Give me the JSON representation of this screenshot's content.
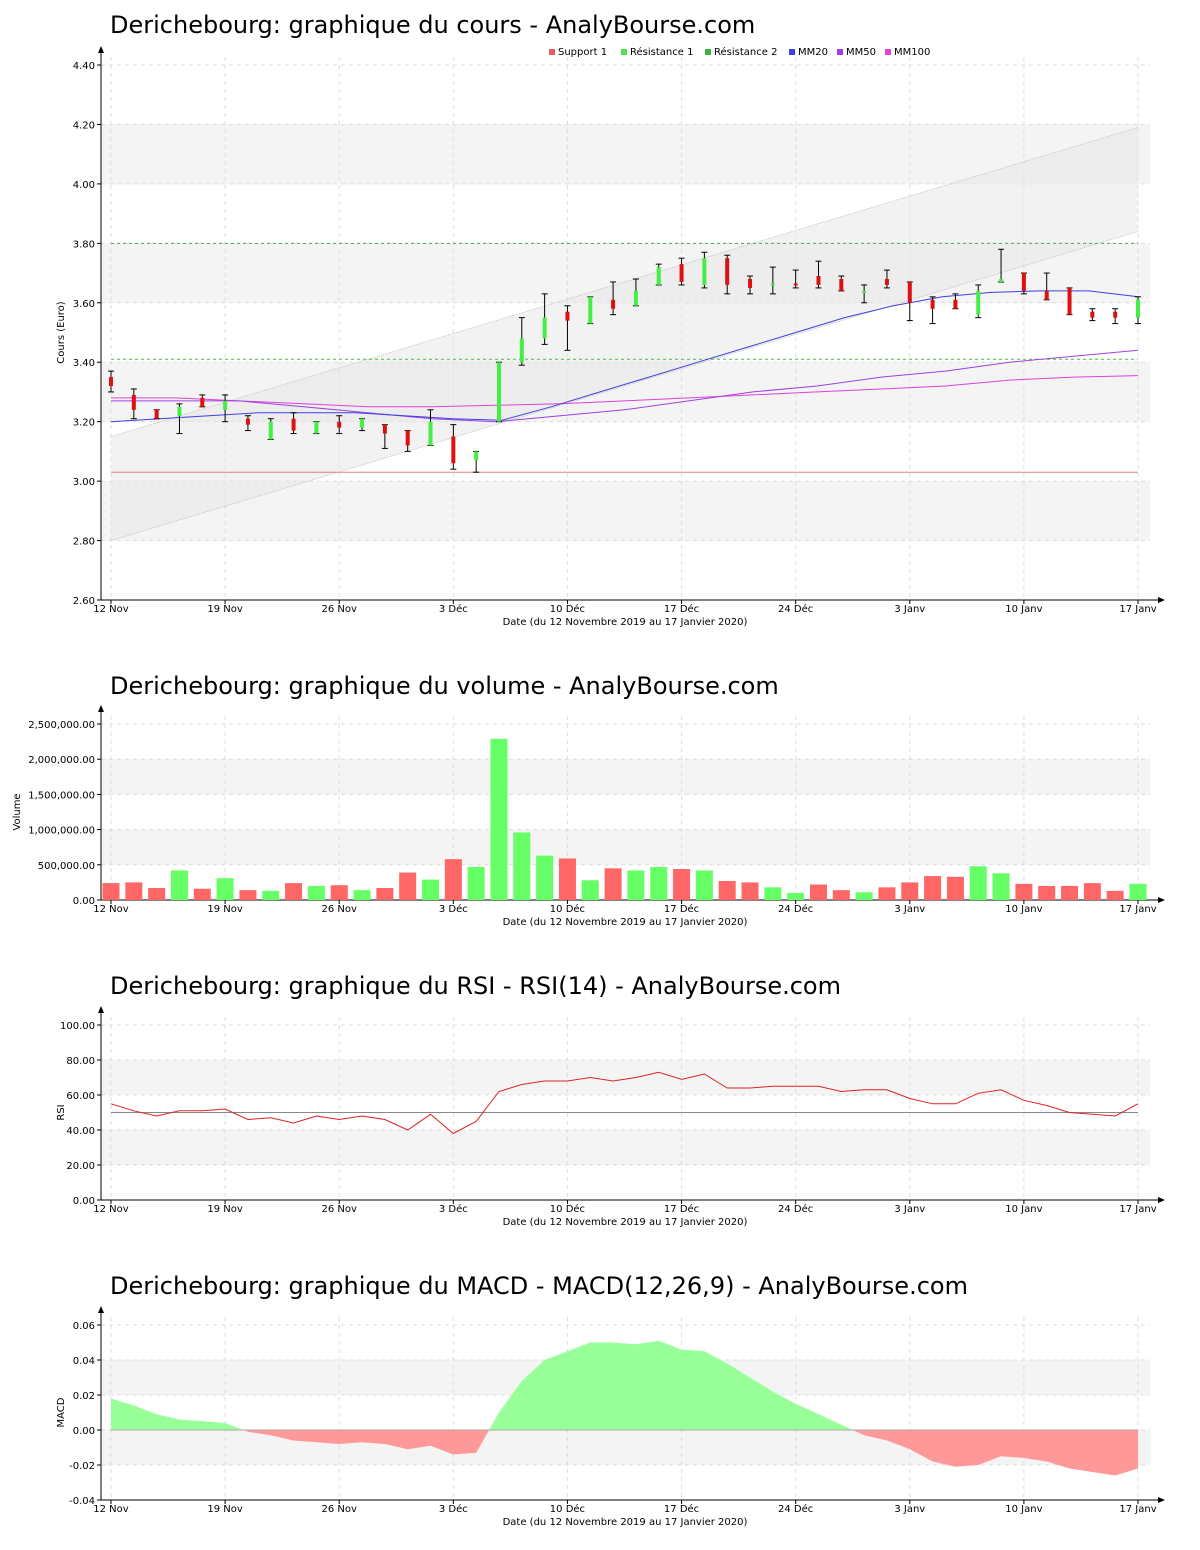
{
  "chart_data": [
    {
      "type": "candlestick",
      "title": "Derichebourg: graphique du cours - AnalyBourse.com",
      "xlabel": "Date (du 12 Novembre 2019 au 17 Janvier 2020)",
      "ylabel": "Cours (Euro)",
      "ylim": [
        2.6,
        4.4
      ],
      "yticks": [
        "2.60",
        "2.80",
        "3.00",
        "3.20",
        "3.40",
        "3.60",
        "3.80",
        "4.00",
        "4.20",
        "4.40"
      ],
      "xticks": [
        "12 Nov",
        "19 Nov",
        "26 Nov",
        "3 Déc",
        "10 Déc",
        "17 Déc",
        "24 Déc",
        "3 Janv",
        "10 Janv",
        "17 Janv"
      ],
      "legend": [
        {
          "name": "Support 1",
          "color": "#e06060"
        },
        {
          "name": "Résistance 1",
          "color": "#55e055"
        },
        {
          "name": "Résistance 2",
          "color": "#40b040"
        },
        {
          "name": "MM20",
          "color": "#4040e0"
        },
        {
          "name": "MM50",
          "color": "#a040e0"
        },
        {
          "name": "MM100",
          "color": "#e040e0"
        }
      ],
      "support1": 3.03,
      "resistance1": 3.41,
      "resistance2": 3.8,
      "candles": [
        {
          "o": 3.35,
          "h": 3.37,
          "l": 3.3,
          "c": 3.32
        },
        {
          "o": 3.29,
          "h": 3.31,
          "l": 3.21,
          "c": 3.24
        },
        {
          "o": 3.24,
          "h": 3.24,
          "l": 3.21,
          "c": 3.21
        },
        {
          "o": 3.22,
          "h": 3.26,
          "l": 3.16,
          "c": 3.25
        },
        {
          "o": 3.28,
          "h": 3.29,
          "l": 3.25,
          "c": 3.25
        },
        {
          "o": 3.24,
          "h": 3.29,
          "l": 3.2,
          "c": 3.27
        },
        {
          "o": 3.21,
          "h": 3.22,
          "l": 3.17,
          "c": 3.19
        },
        {
          "o": 3.14,
          "h": 3.21,
          "l": 3.14,
          "c": 3.2
        },
        {
          "o": 3.21,
          "h": 3.23,
          "l": 3.16,
          "c": 3.17
        },
        {
          "o": 3.16,
          "h": 3.2,
          "l": 3.16,
          "c": 3.2
        },
        {
          "o": 3.2,
          "h": 3.22,
          "l": 3.16,
          "c": 3.18
        },
        {
          "o": 3.18,
          "h": 3.21,
          "l": 3.17,
          "c": 3.21
        },
        {
          "o": 3.19,
          "h": 3.19,
          "l": 3.11,
          "c": 3.16
        },
        {
          "o": 3.17,
          "h": 3.17,
          "l": 3.1,
          "c": 3.12
        },
        {
          "o": 3.12,
          "h": 3.24,
          "l": 3.12,
          "c": 3.2
        },
        {
          "o": 3.15,
          "h": 3.19,
          "l": 3.04,
          "c": 3.06
        },
        {
          "o": 3.07,
          "h": 3.1,
          "l": 3.03,
          "c": 3.1
        },
        {
          "o": 3.2,
          "h": 3.4,
          "l": 3.2,
          "c": 3.4
        },
        {
          "o": 3.4,
          "h": 3.55,
          "l": 3.39,
          "c": 3.48
        },
        {
          "o": 3.48,
          "h": 3.63,
          "l": 3.46,
          "c": 3.55
        },
        {
          "o": 3.57,
          "h": 3.59,
          "l": 3.44,
          "c": 3.54
        },
        {
          "o": 3.53,
          "h": 3.62,
          "l": 3.53,
          "c": 3.62
        },
        {
          "o": 3.61,
          "h": 3.67,
          "l": 3.56,
          "c": 3.58
        },
        {
          "o": 3.59,
          "h": 3.68,
          "l": 3.59,
          "c": 3.64
        },
        {
          "o": 3.66,
          "h": 3.73,
          "l": 3.66,
          "c": 3.72
        },
        {
          "o": 3.73,
          "h": 3.75,
          "l": 3.66,
          "c": 3.67
        },
        {
          "o": 3.66,
          "h": 3.77,
          "l": 3.65,
          "c": 3.75
        },
        {
          "o": 3.75,
          "h": 3.76,
          "l": 3.63,
          "c": 3.66
        },
        {
          "o": 3.68,
          "h": 3.69,
          "l": 3.63,
          "c": 3.65
        },
        {
          "o": 3.66,
          "h": 3.72,
          "l": 3.63,
          "c": 3.665
        },
        {
          "o": 3.665,
          "h": 3.71,
          "l": 3.65,
          "c": 3.66
        },
        {
          "o": 3.69,
          "h": 3.74,
          "l": 3.65,
          "c": 3.66
        },
        {
          "o": 3.68,
          "h": 3.69,
          "l": 3.64,
          "c": 3.64
        },
        {
          "o": 3.64,
          "h": 3.66,
          "l": 3.6,
          "c": 3.64
        },
        {
          "o": 3.68,
          "h": 3.71,
          "l": 3.65,
          "c": 3.66
        },
        {
          "o": 3.67,
          "h": 3.67,
          "l": 3.54,
          "c": 3.6
        },
        {
          "o": 3.61,
          "h": 3.62,
          "l": 3.53,
          "c": 3.58
        },
        {
          "o": 3.61,
          "h": 3.63,
          "l": 3.58,
          "c": 3.58
        },
        {
          "o": 3.56,
          "h": 3.66,
          "l": 3.55,
          "c": 3.64
        },
        {
          "o": 3.67,
          "h": 3.78,
          "l": 3.67,
          "c": 3.68
        },
        {
          "o": 3.7,
          "h": 3.7,
          "l": 3.63,
          "c": 3.64
        },
        {
          "o": 3.64,
          "h": 3.7,
          "l": 3.61,
          "c": 3.61
        },
        {
          "o": 3.65,
          "h": 3.65,
          "l": 3.56,
          "c": 3.56
        },
        {
          "o": 3.57,
          "h": 3.58,
          "l": 3.54,
          "c": 3.55
        },
        {
          "o": 3.57,
          "h": 3.58,
          "l": 3.53,
          "c": 3.55
        },
        {
          "o": 3.55,
          "h": 3.62,
          "l": 3.53,
          "c": 3.61
        }
      ],
      "mm20": [
        3.2,
        3.21,
        3.22,
        3.23,
        3.23,
        3.23,
        3.22,
        3.21,
        3.205,
        3.25,
        3.3,
        3.35,
        3.4,
        3.45,
        3.5,
        3.55,
        3.59,
        3.62,
        3.635,
        3.64,
        3.64,
        3.62
      ],
      "mm50": [
        3.27,
        3.27,
        3.27,
        3.25,
        3.23,
        3.21,
        3.2,
        3.22,
        3.24,
        3.27,
        3.3,
        3.32,
        3.35,
        3.37,
        3.4,
        3.42,
        3.44
      ],
      "mm100": [
        3.28,
        3.28,
        3.27,
        3.26,
        3.25,
        3.25,
        3.255,
        3.26,
        3.27,
        3.28,
        3.29,
        3.3,
        3.31,
        3.32,
        3.34,
        3.35,
        3.355
      ],
      "channel": {
        "upper": [
          3.15,
          4.19
        ],
        "lower": [
          2.8,
          3.84
        ]
      }
    },
    {
      "type": "bar",
      "title": "Derichebourg: graphique du volume - AnalyBourse.com",
      "xlabel": "Date (du 12 Novembre 2019 au 17 Janvier 2020)",
      "ylabel": "Volume",
      "ylim": [
        0,
        2500000
      ],
      "yticks": [
        "0.00",
        "500,000.00",
        "1,000,000.00",
        "1,500,000.00",
        "2,000,000.00",
        "2,500,000.00"
      ],
      "xticks": [
        "12 Nov",
        "19 Nov",
        "26 Nov",
        "3 Déc",
        "10 Déc",
        "17 Déc",
        "24 Déc",
        "3 Janv",
        "10 Janv",
        "17 Janv"
      ],
      "values": [
        240000,
        250000,
        170000,
        420000,
        160000,
        310000,
        140000,
        130000,
        240000,
        200000,
        210000,
        140000,
        170000,
        390000,
        290000,
        580000,
        470000,
        2290000,
        960000,
        630000,
        590000,
        280000,
        450000,
        420000,
        470000,
        440000,
        420000,
        270000,
        250000,
        180000,
        100000,
        220000,
        140000,
        110000,
        180000,
        250000,
        340000,
        330000,
        480000,
        380000,
        230000,
        200000,
        200000,
        240000,
        130000,
        230000
      ],
      "up": [
        false,
        false,
        false,
        true,
        false,
        true,
        false,
        true,
        false,
        true,
        false,
        true,
        false,
        false,
        true,
        false,
        true,
        true,
        true,
        true,
        false,
        true,
        false,
        true,
        true,
        false,
        true,
        false,
        false,
        true,
        true,
        false,
        false,
        true,
        false,
        false,
        false,
        false,
        true,
        true,
        false,
        false,
        false,
        false,
        false,
        true
      ]
    },
    {
      "type": "line",
      "title": "Derichebourg: graphique du RSI - RSI(14) - AnalyBourse.com",
      "xlabel": "Date (du 12 Novembre 2019 au 17 Janvier 2020)",
      "ylabel": "RSI",
      "ylim": [
        0,
        100
      ],
      "yticks": [
        "0.00",
        "20.00",
        "40.00",
        "60.00",
        "80.00",
        "100.00"
      ],
      "xticks": [
        "12 Nov",
        "19 Nov",
        "26 Nov",
        "3 Déc",
        "10 Déc",
        "17 Déc",
        "24 Déc",
        "3 Janv",
        "10 Janv",
        "17 Janv"
      ],
      "reference": 50,
      "values": [
        55,
        51,
        48,
        51,
        51,
        52,
        46,
        47,
        44,
        48,
        46,
        48,
        46,
        40,
        49,
        38,
        45,
        62,
        66,
        68,
        68,
        70,
        68,
        70,
        73,
        69,
        72,
        64,
        64,
        65,
        65,
        65,
        62,
        63,
        63,
        58,
        55,
        55,
        61,
        63,
        57,
        54,
        50,
        49,
        48,
        55
      ]
    },
    {
      "type": "area",
      "title": "Derichebourg: graphique du MACD - MACD(12,26,9) - AnalyBourse.com",
      "xlabel": "Date (du 12 Novembre 2019 au 17 Janvier 2020)",
      "ylabel": "MACD",
      "ylim": [
        -0.04,
        0.06
      ],
      "yticks": [
        "-0.04",
        "-0.02",
        "0.00",
        "0.02",
        "0.04",
        "0.06"
      ],
      "xticks": [
        "12 Nov",
        "19 Nov",
        "26 Nov",
        "3 Déc",
        "10 Déc",
        "17 Déc",
        "24 Déc",
        "3 Janv",
        "10 Janv",
        "17 Janv"
      ],
      "values": [
        0.018,
        0.014,
        0.009,
        0.006,
        0.005,
        0.004,
        -0.001,
        -0.003,
        -0.006,
        -0.007,
        -0.008,
        -0.007,
        -0.008,
        -0.011,
        -0.009,
        -0.014,
        -0.013,
        0.01,
        0.028,
        0.04,
        0.045,
        0.05,
        0.05,
        0.049,
        0.051,
        0.046,
        0.045,
        0.038,
        0.03,
        0.022,
        0.015,
        0.009,
        0.003,
        -0.003,
        -0.006,
        -0.011,
        -0.018,
        -0.021,
        -0.02,
        -0.015,
        -0.016,
        -0.018,
        -0.022,
        -0.024,
        -0.026,
        -0.022
      ]
    }
  ]
}
